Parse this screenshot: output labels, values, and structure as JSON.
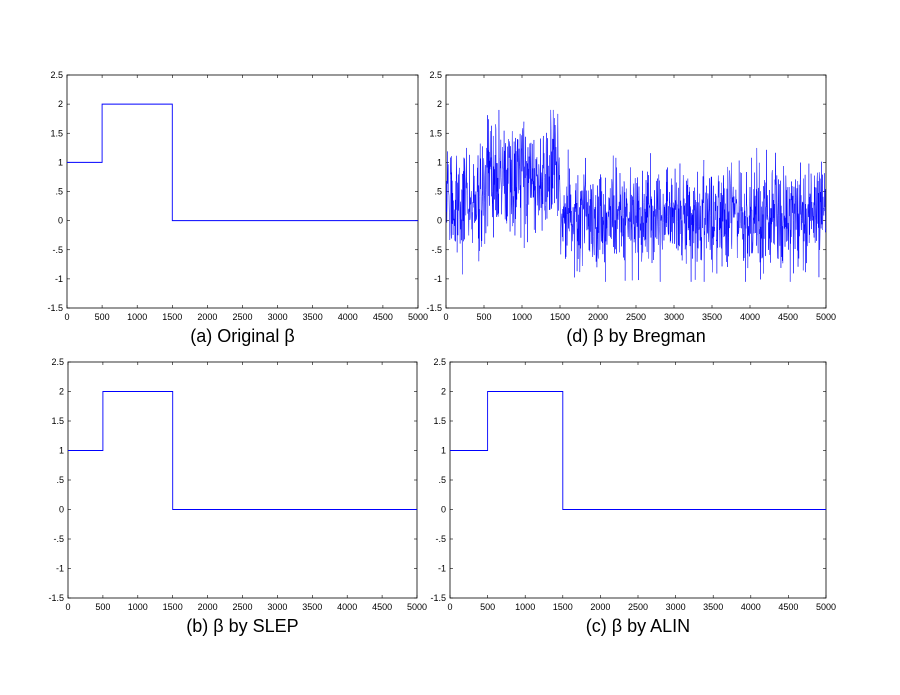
{
  "chart_data": [
    {
      "type": "line",
      "caption": "(a) Original β",
      "xlim": [
        0,
        5000
      ],
      "ylim": [
        -1.5,
        2.5
      ],
      "xticks": [
        0,
        500,
        1000,
        1500,
        2000,
        2500,
        3000,
        3500,
        4000,
        4500,
        5000
      ],
      "yticks": [
        -1.5,
        -1,
        -0.5,
        0,
        0.5,
        1,
        1.5,
        2,
        2.5
      ],
      "line_color": "#0000ff",
      "series": [
        {
          "x": [
            0,
            500,
            500,
            1500,
            1500,
            5000
          ],
          "y": [
            1,
            1,
            2,
            2,
            0,
            0
          ]
        }
      ]
    },
    {
      "type": "line",
      "caption": "(d) β by Bregman",
      "xlim": [
        0,
        5000
      ],
      "ylim": [
        -1.5,
        2.5
      ],
      "xticks": [
        0,
        500,
        1000,
        1500,
        2000,
        2500,
        3000,
        3500,
        4000,
        4500,
        5000
      ],
      "yticks": [
        -1.5,
        -1,
        -0.5,
        0,
        0.5,
        1,
        1.5,
        2,
        2.5
      ],
      "line_color": "#0000ff",
      "noisy": true,
      "segments": [
        {
          "x_start": 0,
          "x_end": 500,
          "mean": 0.35,
          "spread": 0.45
        },
        {
          "x_start": 500,
          "x_end": 1500,
          "mean": 0.75,
          "spread": 0.5
        },
        {
          "x_start": 1500,
          "x_end": 5000,
          "mean": 0.05,
          "spread": 0.45
        }
      ],
      "y_min_observed": -1.05,
      "y_max_observed": 1.9
    },
    {
      "type": "line",
      "caption": "(b) β by SLEP",
      "xlim": [
        0,
        5000
      ],
      "ylim": [
        -1.5,
        2.5
      ],
      "xticks": [
        0,
        500,
        1000,
        1500,
        2000,
        2500,
        3000,
        3500,
        4000,
        4500,
        5000
      ],
      "yticks": [
        -1.5,
        -1,
        -0.5,
        0,
        0.5,
        1,
        1.5,
        2,
        2.5
      ],
      "line_color": "#0000ff",
      "series": [
        {
          "x": [
            0,
            500,
            500,
            1500,
            1500,
            5000
          ],
          "y": [
            1,
            1,
            2,
            2,
            0,
            0
          ]
        }
      ]
    },
    {
      "type": "line",
      "caption": "(c) β by ALIN",
      "xlim": [
        0,
        5000
      ],
      "ylim": [
        -1.5,
        2.5
      ],
      "xticks": [
        0,
        500,
        1000,
        1500,
        2000,
        2500,
        3000,
        3500,
        4000,
        4500,
        5000
      ],
      "yticks": [
        -1.5,
        -1,
        -0.5,
        0,
        0.5,
        1,
        1.5,
        2,
        2.5
      ],
      "line_color": "#0000ff",
      "series": [
        {
          "x": [
            0,
            500,
            500,
            1500,
            1500,
            5000
          ],
          "y": [
            1,
            1,
            2,
            2,
            0,
            0
          ]
        }
      ]
    }
  ]
}
